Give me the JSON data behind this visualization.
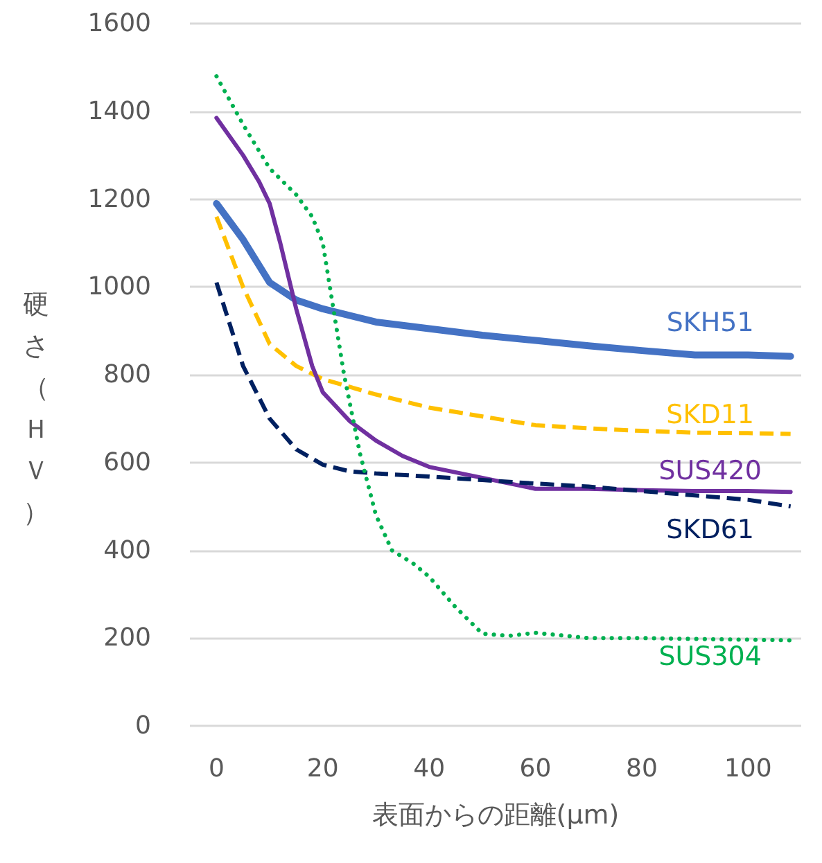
{
  "chart_data": {
    "type": "line",
    "xlabel": "表面からの距離(μm)",
    "ylabel": "硬さ（ＨＶ）",
    "xlim": [
      -5,
      110
    ],
    "xticks": [
      0,
      20,
      40,
      60,
      80,
      100
    ],
    "ylim": [
      0,
      1600
    ],
    "yticks": [
      0,
      200,
      400,
      600,
      800,
      1000,
      1200,
      1400,
      1600
    ],
    "grid": "y",
    "legend": false,
    "marker": "none",
    "series": [
      {
        "name": "SKH51",
        "color": "#4472c4",
        "line_style": "solid",
        "x": [
          0,
          5,
          10,
          15,
          20,
          30,
          40,
          50,
          60,
          70,
          80,
          90,
          100,
          108
        ],
        "values": [
          1190,
          1108,
          1010,
          970,
          950,
          920,
          905,
          890,
          878,
          866,
          855,
          845,
          845,
          842
        ]
      },
      {
        "name": "SKD11",
        "color": "#ffc000",
        "line_style": "dashed",
        "x": [
          0,
          5,
          10,
          15,
          20,
          30,
          40,
          50,
          60,
          70,
          80,
          90,
          100,
          108
        ],
        "values": [
          1160,
          1000,
          870,
          820,
          790,
          755,
          725,
          705,
          685,
          678,
          672,
          668,
          667,
          665
        ]
      },
      {
        "name": "SUS420",
        "color": "#7030a0",
        "line_style": "solid",
        "x": [
          0,
          5,
          8,
          10,
          12,
          15,
          18,
          20,
          25,
          30,
          35,
          40,
          50,
          60,
          70,
          80,
          90,
          100,
          108
        ],
        "values": [
          1385,
          1300,
          1240,
          1190,
          1100,
          950,
          820,
          760,
          695,
          650,
          615,
          590,
          565,
          540,
          540,
          537,
          535,
          535,
          533
        ]
      },
      {
        "name": "SKD61",
        "color": "#002060",
        "line_style": "dashed",
        "x": [
          0,
          5,
          10,
          15,
          20,
          25,
          30,
          40,
          50,
          60,
          70,
          80,
          90,
          100,
          108
        ],
        "values": [
          1010,
          820,
          700,
          630,
          595,
          580,
          575,
          568,
          560,
          552,
          545,
          535,
          525,
          515,
          500
        ]
      },
      {
        "name": "SUS304",
        "color": "#00b050",
        "line_style": "dotted",
        "x": [
          0,
          5,
          10,
          15,
          18,
          20,
          22,
          24,
          27,
          30,
          33,
          37,
          40,
          45,
          50,
          55,
          60,
          70,
          80,
          90,
          108
        ],
        "values": [
          1480,
          1370,
          1270,
          1210,
          1160,
          1100,
          950,
          800,
          620,
          480,
          400,
          370,
          340,
          270,
          210,
          205,
          212,
          200,
          200,
          198,
          195
        ]
      }
    ]
  }
}
